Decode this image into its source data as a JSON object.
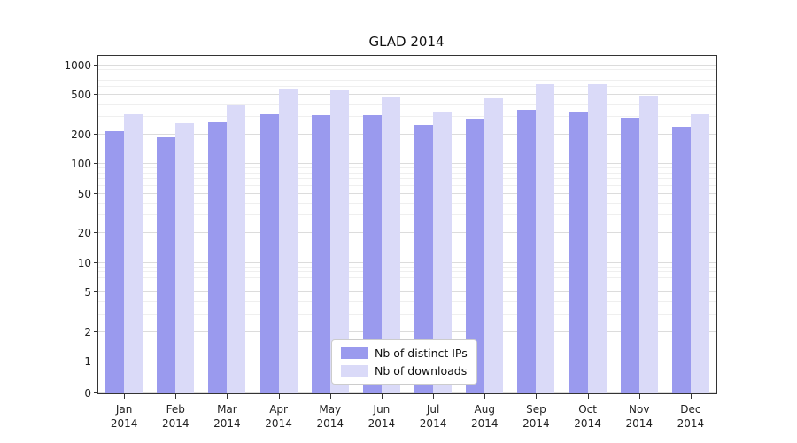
{
  "chart_data": {
    "type": "bar",
    "title": "GLAD 2014",
    "categories": [
      "Jan 2014",
      "Feb 2014",
      "Mar 2014",
      "Apr 2014",
      "May 2014",
      "Jun 2014",
      "Jul 2014",
      "Aug 2014",
      "Sep 2014",
      "Oct 2014",
      "Nov 2014",
      "Dec 2014"
    ],
    "series": [
      {
        "name": "Nb of distinct IPs",
        "color": "#9a9aee",
        "values": [
          215,
          185,
          265,
          320,
          310,
          310,
          250,
          290,
          355,
          340,
          295,
          240
        ]
      },
      {
        "name": "Nb of downloads",
        "color": "#dadaf8",
        "values": [
          320,
          260,
          400,
          580,
          555,
          480,
          340,
          465,
          640,
          645,
          495,
          320
        ]
      }
    ],
    "y_axis": {
      "scale": "symlog",
      "ticks": [
        0,
        1,
        2,
        5,
        10,
        20,
        50,
        100,
        200,
        500,
        1000
      ],
      "max": 1000
    },
    "x_axis": {
      "label": ""
    },
    "grid": true,
    "legend_position": "lower center"
  }
}
